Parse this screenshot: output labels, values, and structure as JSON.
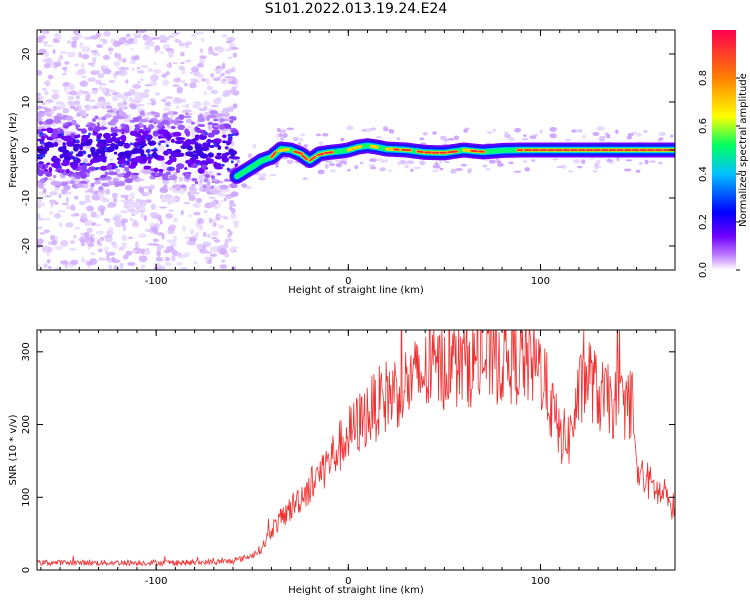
{
  "title": "S101.2022.013.19.24.E24",
  "chart_data": [
    {
      "type": "heatmap",
      "title": "S101.2022.013.19.24.E24",
      "xlabel": "Height of straight line (km)",
      "ylabel": "Frequency (Hz)",
      "xlim": [
        -162,
        170
      ],
      "ylim": [
        -25,
        25
      ],
      "x_ticks": [
        -100,
        0,
        100
      ],
      "y_ticks": [
        -20,
        -10,
        0,
        10,
        20
      ],
      "colorbar": {
        "label": "Normalized spectral amplitude",
        "range": [
          0.0,
          1.0
        ],
        "ticks": [
          0.0,
          0.2,
          0.4,
          0.6,
          0.8
        ],
        "colors": [
          "#ffffff",
          "#7000ff",
          "#0000ff",
          "#00c0ff",
          "#00ff60",
          "#ffff00",
          "#ff8000",
          "#ff0050"
        ]
      },
      "ridge": {
        "x": [
          -58,
          -50,
          -45,
          -40,
          -35,
          -30,
          -25,
          -20,
          -15,
          -10,
          -5,
          0,
          5,
          10,
          15,
          20,
          30,
          40,
          50,
          60,
          70,
          80,
          90,
          100,
          120,
          140,
          160,
          170
        ],
        "y": [
          -5.5,
          -3.5,
          -2.2,
          -1.5,
          0.2,
          0.0,
          -0.8,
          -2.2,
          -0.8,
          -0.5,
          -0.3,
          0.0,
          0.6,
          0.9,
          0.6,
          0.2,
          0.0,
          -0.5,
          -0.6,
          0.0,
          -0.4,
          -0.1,
          0.0,
          0.0,
          0.0,
          0.0,
          0.0,
          0.0
        ]
      },
      "noise_region": {
        "x_range": [
          -162,
          -58
        ],
        "frequency_spread": [
          -8,
          8
        ]
      }
    },
    {
      "type": "line",
      "xlabel": "Height of straight line (km)",
      "ylabel": "SNR (10 * v/v)",
      "xlim": [
        -162,
        170
      ],
      "ylim": [
        0,
        330
      ],
      "x_ticks": [
        -100,
        0,
        100
      ],
      "y_ticks": [
        0,
        100,
        200,
        300
      ],
      "color": "#f03030",
      "envelope": {
        "x": [
          -162,
          -120,
          -80,
          -60,
          -50,
          -45,
          -40,
          -30,
          -20,
          -10,
          0,
          10,
          20,
          30,
          40,
          50,
          60,
          70,
          80,
          90,
          100,
          105,
          110,
          115,
          120,
          125,
          130,
          140,
          148,
          150,
          155,
          160,
          170
        ],
        "y": [
          10,
          10,
          10,
          12,
          20,
          30,
          55,
          85,
          115,
          150,
          185,
          215,
          240,
          255,
          270,
          280,
          285,
          288,
          290,
          288,
          278,
          230,
          185,
          180,
          240,
          270,
          240,
          225,
          230,
          130,
          125,
          110,
          85
        ]
      }
    }
  ]
}
